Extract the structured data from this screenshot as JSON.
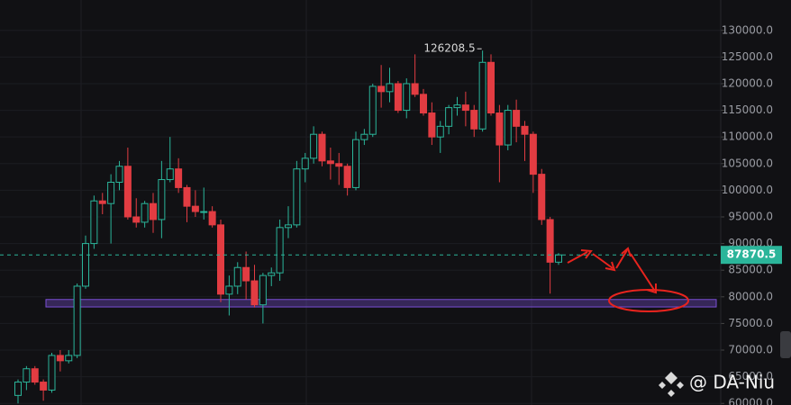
{
  "chart_data": {
    "type": "candlestick",
    "series": [
      {
        "name": "BTC",
        "up_color": "#2bb59a",
        "down_color": "#e23c42",
        "open": [
          61500,
          64000,
          66500,
          64000,
          62500,
          69000,
          68000,
          69000,
          82000,
          90000,
          98000,
          97500,
          101500,
          104500,
          95000,
          94000,
          97500,
          94500,
          102000,
          104000,
          100500,
          97000,
          96000,
          96000,
          93500,
          80500,
          82000,
          85500,
          83000,
          78500,
          84000,
          84500,
          93000,
          93500,
          104000,
          106000,
          110500,
          105500,
          105000,
          104500,
          100500,
          109500,
          110500,
          119500,
          118500,
          120000,
          115000,
          120000,
          118000,
          114500,
          110000,
          112000,
          115500,
          116000,
          115000,
          111500,
          124000,
          114500,
          108500,
          115000,
          112000,
          110500,
          103000,
          94500,
          86500
        ],
        "high": [
          64500,
          67000,
          67000,
          64500,
          69500,
          70000,
          70000,
          82500,
          91500,
          99000,
          99500,
          103000,
          105500,
          108000,
          98500,
          98000,
          99500,
          105500,
          110000,
          106000,
          101000,
          100000,
          100500,
          97000,
          94500,
          84000,
          86500,
          88500,
          86000,
          84500,
          85500,
          94500,
          97000,
          105500,
          107000,
          112000,
          111000,
          108000,
          107000,
          105000,
          111000,
          111500,
          120000,
          123500,
          123000,
          120500,
          121000,
          125500,
          119000,
          116500,
          113000,
          116000,
          117500,
          118500,
          116000,
          126208.5,
          125500,
          116000,
          116000,
          117000,
          113000,
          111000,
          104000,
          95000,
          88200
        ],
        "low": [
          60000,
          62500,
          63500,
          60500,
          62000,
          66000,
          67500,
          68500,
          81500,
          89000,
          95500,
          90000,
          100000,
          94500,
          93000,
          93000,
          92000,
          91000,
          101500,
          99500,
          94000,
          95000,
          94500,
          93000,
          79000,
          76500,
          80500,
          79500,
          78000,
          75000,
          82000,
          83000,
          91000,
          93000,
          101500,
          105000,
          104500,
          102000,
          101000,
          99000,
          100000,
          108500,
          110000,
          115500,
          116500,
          114500,
          113500,
          117500,
          114000,
          108500,
          107000,
          110500,
          114000,
          112000,
          110000,
          111000,
          114000,
          101500,
          107500,
          109000,
          105500,
          99500,
          93500,
          80600,
          86000
        ],
        "close": [
          64000,
          66500,
          64000,
          62500,
          69000,
          68000,
          69000,
          82000,
          90000,
          98000,
          97500,
          101500,
          104500,
          95000,
          94000,
          97500,
          94500,
          102000,
          104000,
          100500,
          97000,
          96000,
          96000,
          93500,
          80500,
          82000,
          85500,
          83000,
          78500,
          84000,
          84500,
          93000,
          93500,
          104000,
          106000,
          110500,
          105500,
          105000,
          104500,
          100500,
          109500,
          110500,
          119500,
          118500,
          120000,
          115000,
          120000,
          118000,
          114500,
          110000,
          112000,
          115500,
          116000,
          115000,
          111500,
          124000,
          114500,
          108500,
          115000,
          112000,
          110500,
          103000,
          94500,
          86500,
          87870.5
        ]
      }
    ],
    "ylim": [
      59700,
      135700
    ],
    "yticks": [
      {
        "value": 60000,
        "label": "60000.0"
      },
      {
        "value": 65000,
        "label": "65000.0"
      },
      {
        "value": 70000,
        "label": "70000.0"
      },
      {
        "value": 75000,
        "label": "75000.0"
      },
      {
        "value": 80000,
        "label": "80000.0"
      },
      {
        "value": 85000,
        "label": "85000.0"
      },
      {
        "value": 90000,
        "label": "90000.0"
      },
      {
        "value": 95000,
        "label": "95000.0"
      },
      {
        "value": 100000,
        "label": "100000.0"
      },
      {
        "value": 105000,
        "label": "105000.0"
      },
      {
        "value": 110000,
        "label": "110000.0"
      },
      {
        "value": 115000,
        "label": "115000.0"
      },
      {
        "value": 120000,
        "label": "120000.0"
      },
      {
        "value": 125000,
        "label": "125000.0"
      },
      {
        "value": 130000,
        "label": "130000.0"
      }
    ],
    "zone": [
      78100,
      79500
    ],
    "zone_color": "#7b4fd6",
    "grid": true,
    "watermark": "@ DA-Niu"
  }
}
